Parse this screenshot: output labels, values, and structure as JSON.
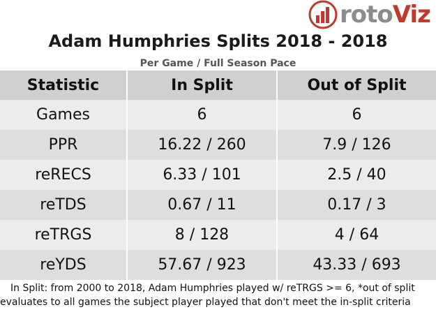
{
  "logo": {
    "text_main": "roto",
    "text_accent": "Viz"
  },
  "chart_data": {
    "type": "table",
    "title": "Adam Humphries Splits 2018 - 2018",
    "subtitle": "Per Game / Full Season Pace",
    "columns": [
      "Statistic",
      "In Split",
      "Out of Split"
    ],
    "rows": [
      [
        "Games",
        "6",
        "6"
      ],
      [
        "PPR",
        "16.22 / 260",
        "7.9 / 126"
      ],
      [
        "reRECS",
        "6.33 / 101",
        "2.5 / 40"
      ],
      [
        "reTDS",
        "0.67 / 11",
        "0.17 / 3"
      ],
      [
        "reTRGS",
        "8 / 128",
        "4 / 64"
      ],
      [
        "reYDS",
        "57.67 / 923",
        "43.33 / 693"
      ]
    ],
    "footnote": "In Split: from 2000 to 2018, Adam Humphries played w/ reTRGS >= 6,  *out of split evaluates to all games the subject player played that don't meet the in-split criteria"
  }
}
